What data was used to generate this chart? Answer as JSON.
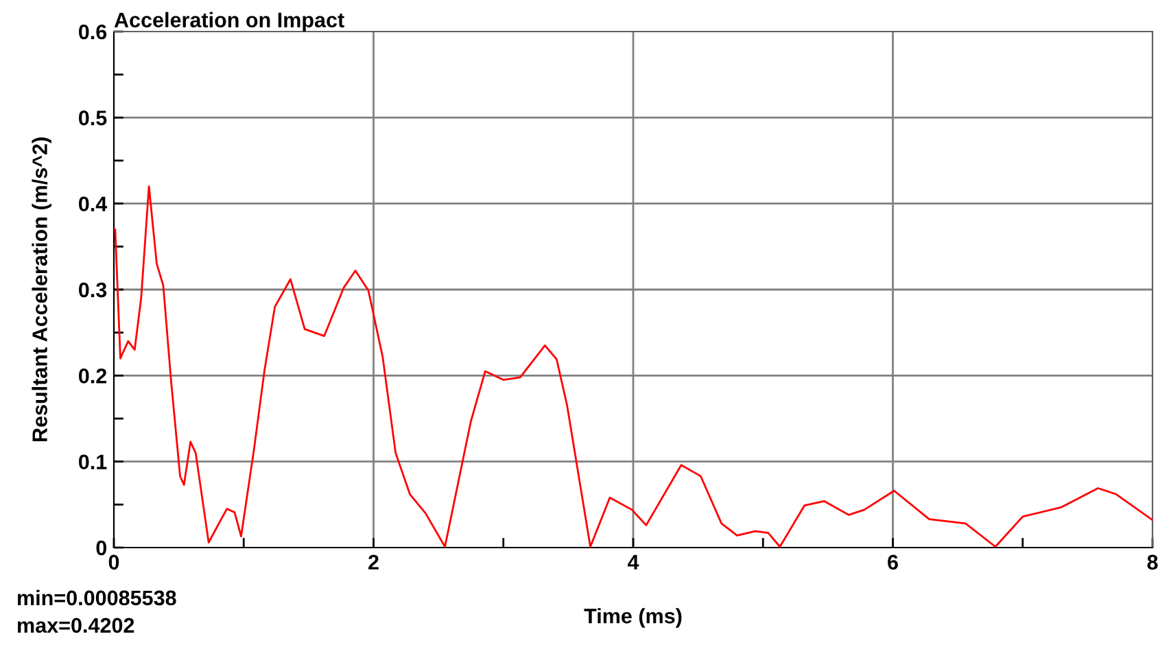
{
  "chart_data": {
    "type": "line",
    "title": "Acceleration on Impact",
    "xlabel": "Time (ms)",
    "ylabel": "Resultant Acceleration (m/s^2)",
    "xlim": [
      0,
      8
    ],
    "ylim": [
      0,
      0.6
    ],
    "xticks": [
      0,
      {
        "value": 1,
        "label": null
      },
      2,
      {
        "value": 3,
        "label": null
      },
      4,
      {
        "value": 5,
        "label": null
      },
      6,
      {
        "value": 7,
        "label": null
      },
      8
    ],
    "yticks": [
      0,
      {
        "value": 0.05,
        "label": null
      },
      0.1,
      {
        "value": 0.15,
        "label": null
      },
      0.2,
      {
        "value": 0.25,
        "label": null
      },
      0.3,
      {
        "value": 0.35,
        "label": null
      },
      0.4,
      {
        "value": 0.45,
        "label": null
      },
      0.5,
      {
        "value": 0.55,
        "label": null
      },
      0.6
    ],
    "grid": true,
    "marker": "none",
    "line_style": "solid",
    "annotations": [
      "min=0.00085538",
      "max=0.4202"
    ],
    "series": [
      {
        "color": "#ff0000",
        "x": [
          0,
          0.01,
          0.05,
          0.11,
          0.16,
          0.21,
          0.27,
          0.33,
          0.38,
          0.44,
          0.51,
          0.54,
          0.59,
          0.63,
          0.73,
          0.87,
          0.93,
          0.98,
          1.08,
          1.16,
          1.24,
          1.36,
          1.47,
          1.62,
          1.77,
          1.86,
          1.96,
          2.07,
          2.17,
          2.28,
          2.4,
          2.55,
          2.75,
          2.86,
          3.0,
          3.13,
          3.32,
          3.41,
          3.49,
          3.67,
          3.82,
          3.99,
          4.1,
          4.37,
          4.52,
          4.68,
          4.8,
          4.94,
          5.04,
          5.13,
          5.32,
          5.47,
          5.66,
          5.78,
          6.01,
          6.28,
          6.56,
          6.79,
          7.0,
          7.3,
          7.58,
          7.72,
          8.0
        ],
        "values": [
          0.37,
          0.37,
          0.22,
          0.24,
          0.23,
          0.29,
          0.42,
          0.33,
          0.305,
          0.195,
          0.083,
          0.073,
          0.123,
          0.11,
          0.006,
          0.045,
          0.041,
          0.013,
          0.115,
          0.206,
          0.28,
          0.312,
          0.254,
          0.246,
          0.302,
          0.322,
          0.299,
          0.222,
          0.11,
          0.062,
          0.04,
          0.001,
          0.147,
          0.205,
          0.195,
          0.198,
          0.235,
          0.219,
          0.166,
          0.001,
          0.058,
          0.044,
          0.026,
          0.096,
          0.083,
          0.028,
          0.014,
          0.019,
          0.017,
          0.001,
          0.049,
          0.054,
          0.038,
          0.044,
          0.066,
          0.033,
          0.028,
          0.001,
          0.036,
          0.047,
          0.069,
          0.062,
          0.032
        ]
      }
    ]
  }
}
